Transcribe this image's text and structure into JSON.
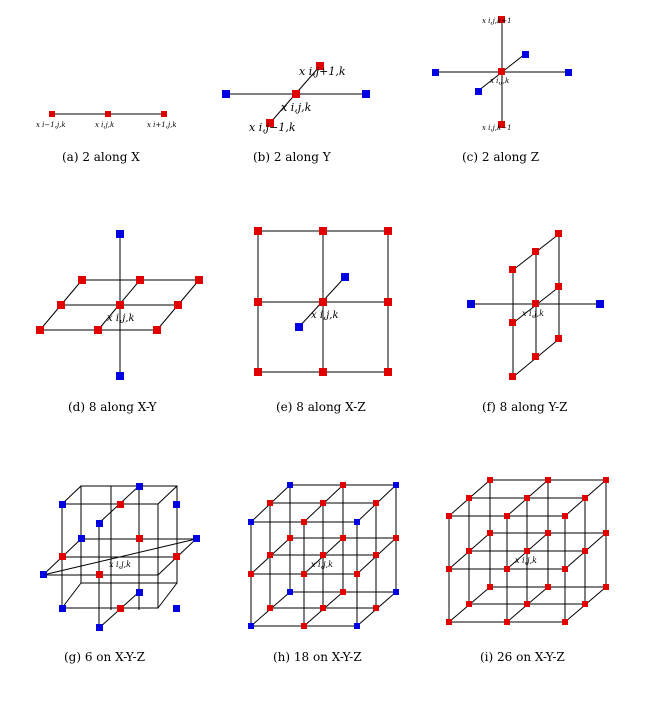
{
  "captions": [
    "(a)  2 along X",
    "(b)  2 along Y",
    "(c)  2 along Z",
    "(d)  8 along X-Y",
    "(e)  8 along X-Z",
    "(f)  8 along Y-Z",
    "(g)  6 on X-Y-Z",
    "(h)  18 on X-Y-Z",
    "(i)  26 on X-Y-Z"
  ],
  "point_labels": {
    "a": [
      "x i−1,j,k",
      "x i,j,k",
      "x i+1,j,k"
    ],
    "b": [
      "x i,j+1,k",
      "x i,j,k",
      "x i,j−1,k"
    ],
    "c": [
      "x i,j,k+1",
      "x i,j,k",
      "x i,j,k−1"
    ],
    "center": "x i,j,k"
  },
  "colors": {
    "neighbor": "#e00000",
    "other": "#0000e0"
  }
}
